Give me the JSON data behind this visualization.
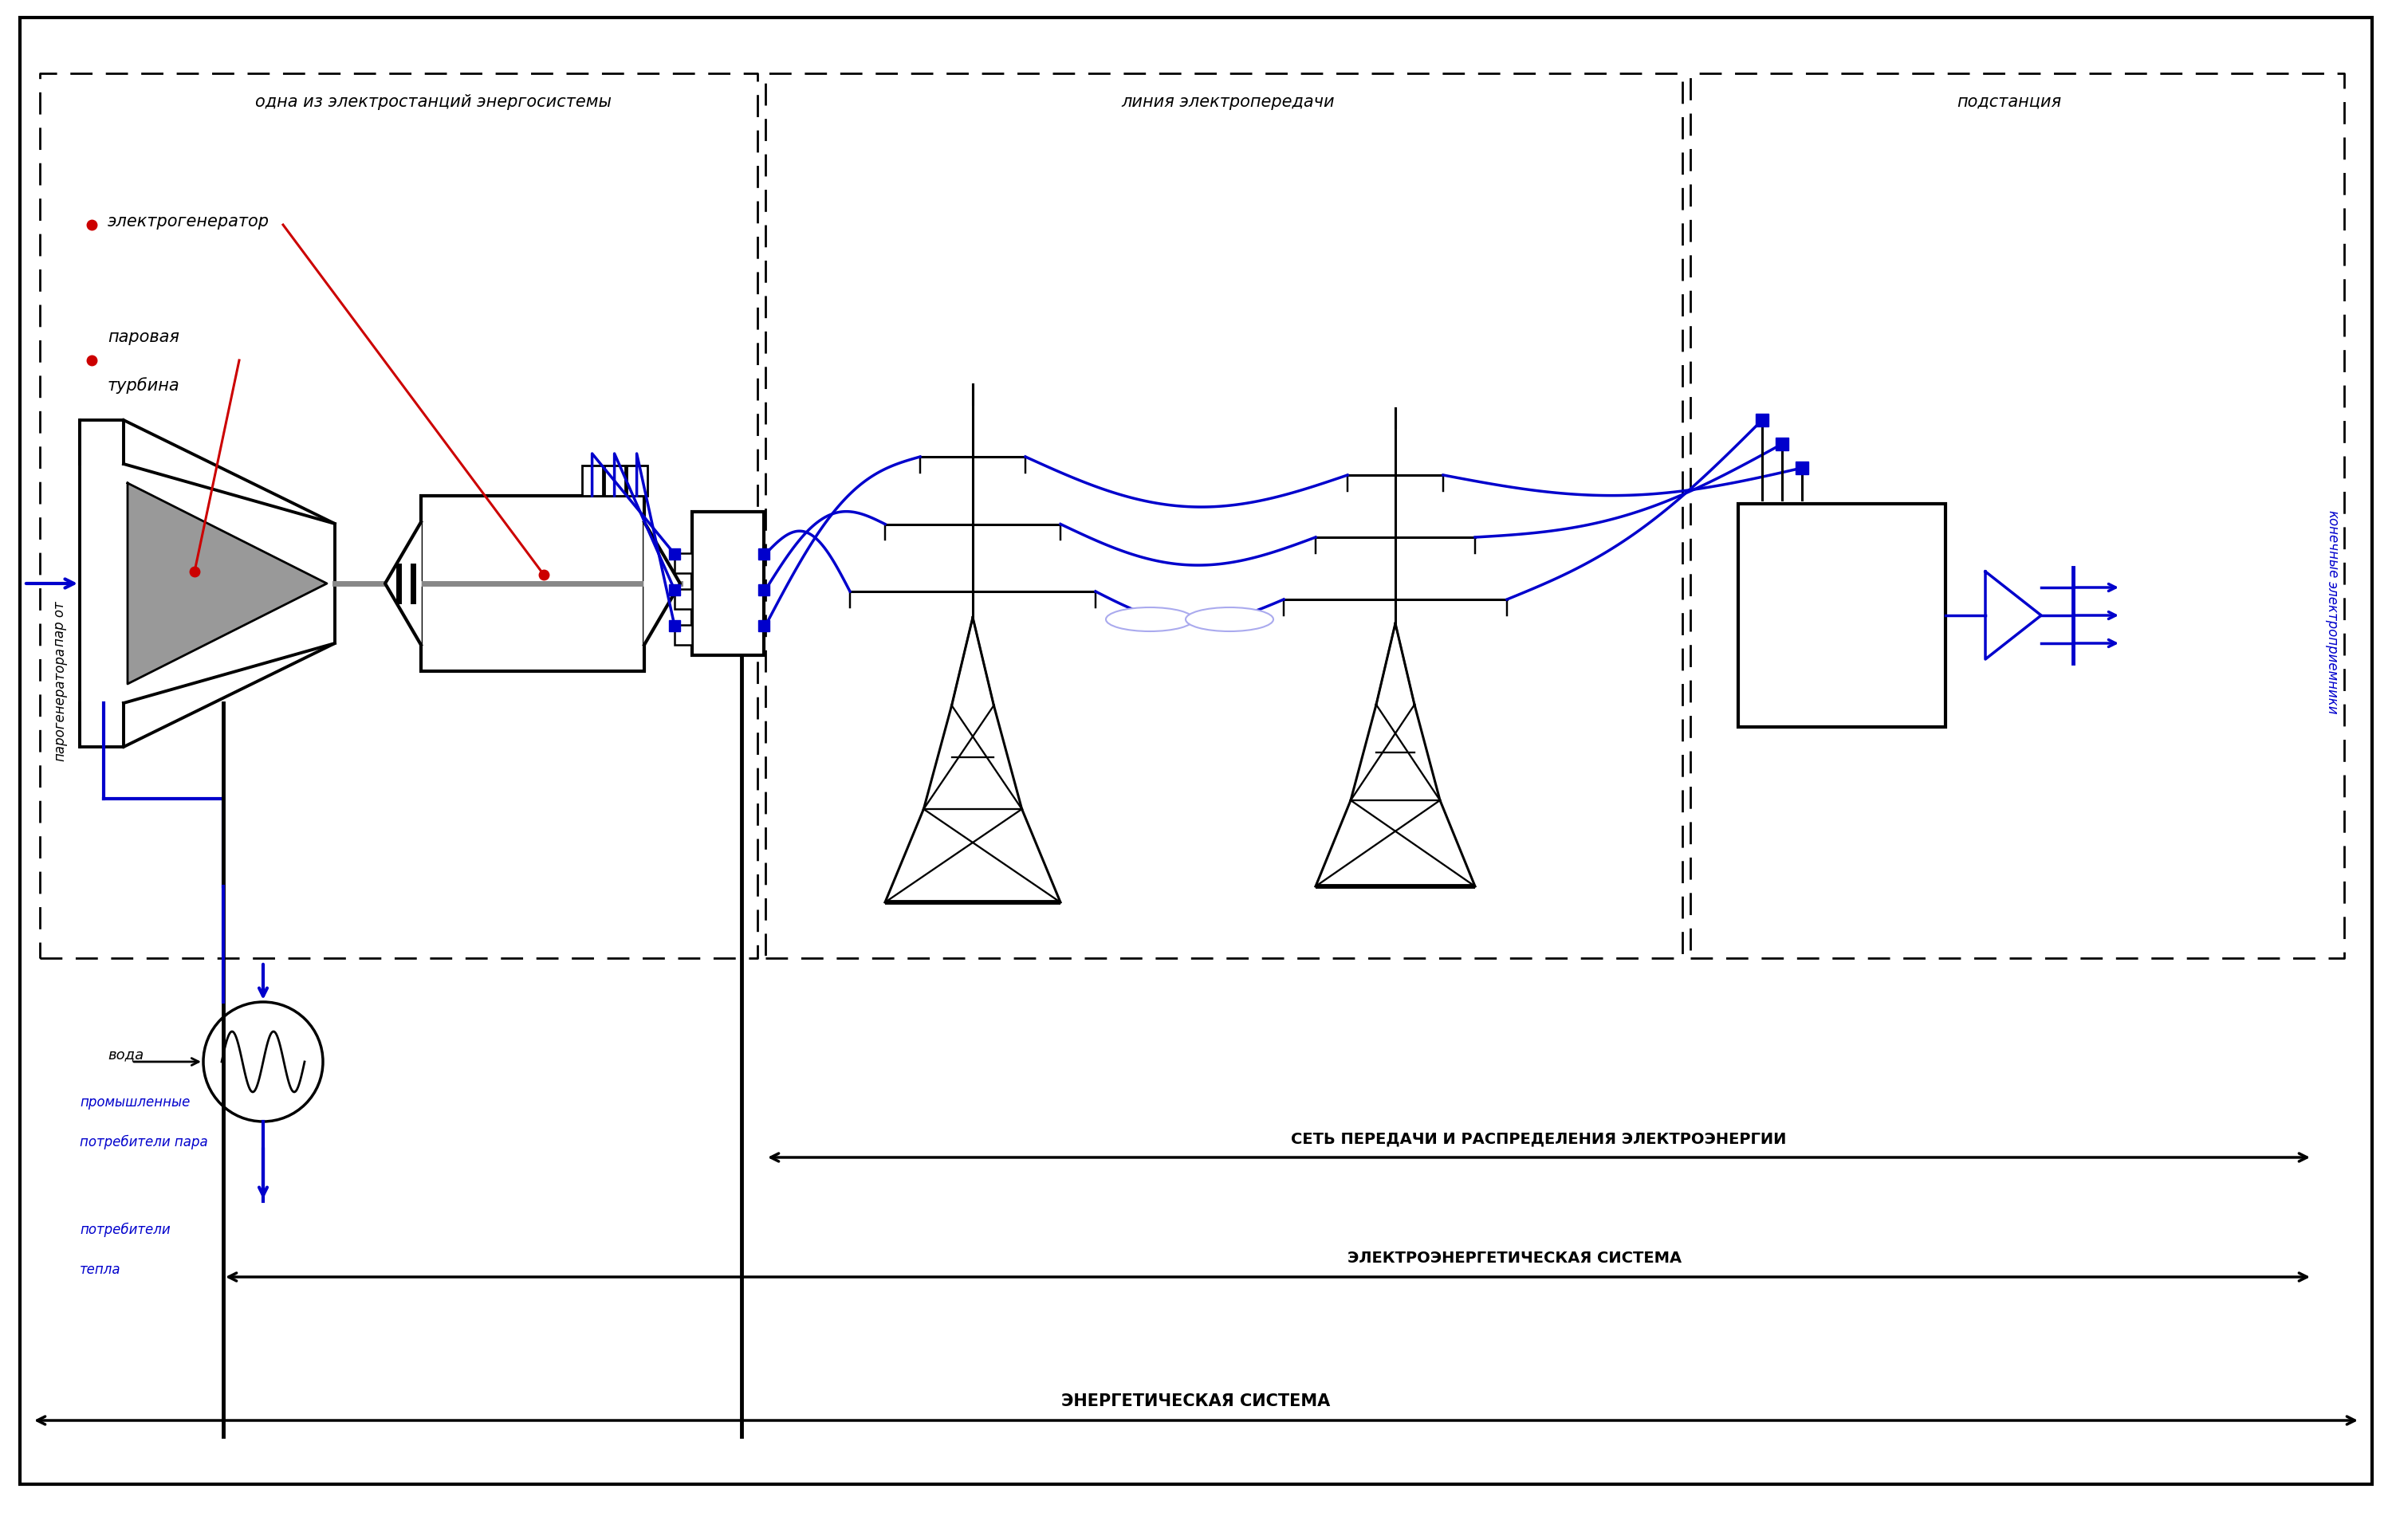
{
  "bg_color": "#ffffff",
  "black": "#000000",
  "blue": "#0000cc",
  "red": "#cc0000",
  "gray": "#888888",
  "label_station": "одна из электростанций энергосистемы",
  "label_line": "линия электропередачи",
  "label_substation": "подстанция",
  "label_generator": "электрогенератор",
  "label_turbine1": "паровая",
  "label_turbine2": "турбина",
  "label_steam1": "пар от",
  "label_steam2": "парогенератора",
  "label_water": "вода",
  "label_industrial1": "промышленные",
  "label_industrial2": "потребители пара",
  "label_heat1": "потребители",
  "label_heat2": "тепла",
  "label_receivers1": "конечные",
  "label_receivers2": "электроприемники",
  "label_net": "СЕТЬ ПЕРЕДАЧИ И РАСПРЕДЕЛЕНИЯ ЭЛЕКТРОЭНЕРГИИ",
  "label_electro": "ЭЛЕКТРОЭНЕРГЕТИЧЕСКАЯ СИСТЕМА",
  "label_energy": "ЭНЕРГЕТИЧЕСКАЯ СИСТЕМА"
}
